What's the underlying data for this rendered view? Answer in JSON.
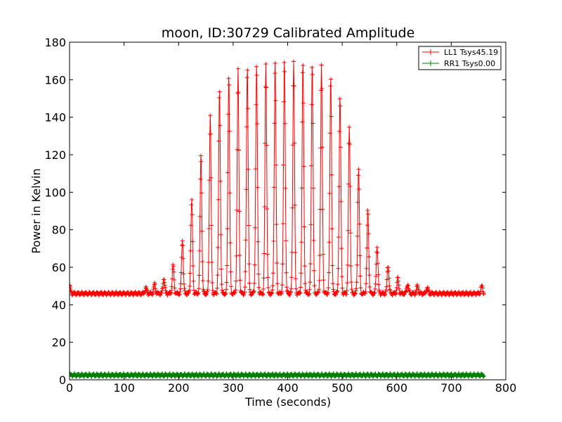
{
  "chart_data": {
    "type": "line",
    "title": "moon, ID:30729 Calibrated Amplitude",
    "xlabel": "Time (seconds)",
    "ylabel": "Power in Kelvin",
    "xlim": [
      0,
      800
    ],
    "ylim": [
      0,
      180
    ],
    "x_ticks": [
      0,
      100,
      200,
      300,
      400,
      500,
      600,
      700,
      800
    ],
    "y_ticks": [
      0,
      20,
      40,
      60,
      80,
      100,
      120,
      140,
      160,
      180
    ],
    "grid": false,
    "legend_position": "top-right",
    "series": [
      {
        "name": "LL1 Tsys45.19",
        "color": "#ff0000",
        "marker": "+",
        "baseline": 46,
        "x_range": [
          0,
          760
        ],
        "peaks": [
          {
            "x": 0,
            "y": 50
          },
          {
            "x": 140,
            "y": 49
          },
          {
            "x": 156,
            "y": 51
          },
          {
            "x": 173,
            "y": 54
          },
          {
            "x": 190,
            "y": 61
          },
          {
            "x": 207,
            "y": 75
          },
          {
            "x": 224,
            "y": 96
          },
          {
            "x": 241,
            "y": 120
          },
          {
            "x": 258,
            "y": 141
          },
          {
            "x": 275,
            "y": 155
          },
          {
            "x": 292,
            "y": 163
          },
          {
            "x": 309,
            "y": 165
          },
          {
            "x": 326,
            "y": 167
          },
          {
            "x": 343,
            "y": 168
          },
          {
            "x": 360,
            "y": 169
          },
          {
            "x": 377,
            "y": 170
          },
          {
            "x": 394,
            "y": 170
          },
          {
            "x": 411,
            "y": 170
          },
          {
            "x": 428,
            "y": 169
          },
          {
            "x": 445,
            "y": 169
          },
          {
            "x": 462,
            "y": 167
          },
          {
            "x": 479,
            "y": 162
          },
          {
            "x": 496,
            "y": 151
          },
          {
            "x": 513,
            "y": 135
          },
          {
            "x": 530,
            "y": 113
          },
          {
            "x": 547,
            "y": 90
          },
          {
            "x": 564,
            "y": 71
          },
          {
            "x": 584,
            "y": 61
          },
          {
            "x": 602,
            "y": 54
          },
          {
            "x": 620,
            "y": 51
          },
          {
            "x": 638,
            "y": 50
          },
          {
            "x": 656,
            "y": 49
          },
          {
            "x": 756,
            "y": 50
          }
        ]
      },
      {
        "name": "RR1 Tsys0.00",
        "color": "#008000",
        "marker": "+",
        "baseline": 2.5,
        "x_range": [
          0,
          760
        ],
        "peaks": []
      }
    ]
  }
}
